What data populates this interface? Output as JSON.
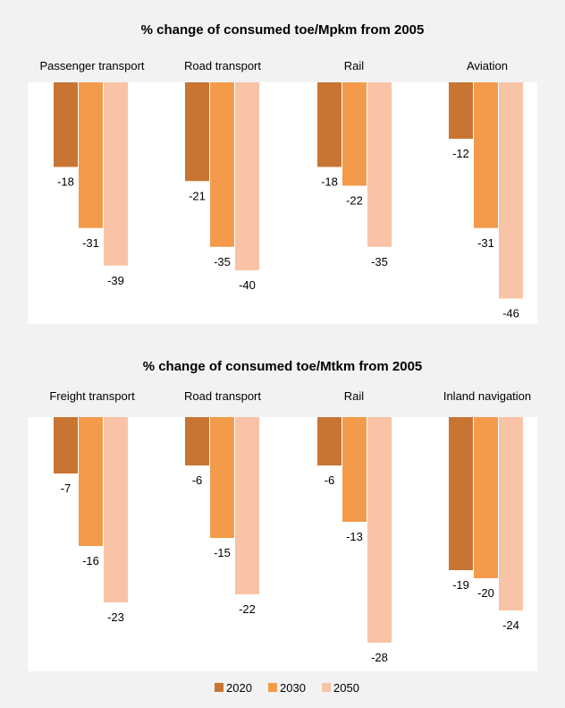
{
  "legend": {
    "items": [
      {
        "label": "2020",
        "color": "#c87533"
      },
      {
        "label": "2030",
        "color": "#f39b4a"
      },
      {
        "label": "2050",
        "color": "#f8c3a6"
      }
    ]
  },
  "chart_data": [
    {
      "type": "bar",
      "title": "% change of consumed toe/Mpkm from 2005",
      "categories": [
        "Passenger transport",
        "Road transport",
        "Rail",
        "Aviation"
      ],
      "series": [
        {
          "name": "2020",
          "values": [
            -18,
            -21,
            -18,
            -12
          ]
        },
        {
          "name": "2030",
          "values": [
            -31,
            -35,
            -22,
            -31
          ]
        },
        {
          "name": "2050",
          "values": [
            -39,
            -40,
            -35,
            -46
          ]
        }
      ],
      "xlabel": "",
      "ylabel": "",
      "ylim": [
        -46,
        0
      ],
      "grid": false,
      "legend_position": "bottom"
    },
    {
      "type": "bar",
      "title": "% change of consumed toe/Mtkm from 2005",
      "categories": [
        "Freight transport",
        "Road transport",
        "Rail",
        "Inland navigation"
      ],
      "series": [
        {
          "name": "2020",
          "values": [
            -7,
            -6,
            -6,
            -19
          ]
        },
        {
          "name": "2030",
          "values": [
            -16,
            -15,
            -13,
            -20
          ]
        },
        {
          "name": "2050",
          "values": [
            -23,
            -22,
            -28,
            -24
          ]
        }
      ],
      "xlabel": "",
      "ylabel": "",
      "ylim": [
        -28,
        0
      ],
      "grid": false,
      "legend_position": "bottom"
    }
  ]
}
